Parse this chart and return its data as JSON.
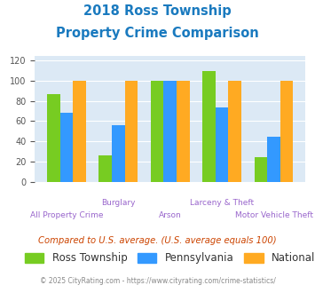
{
  "title_line1": "2018 Ross Township",
  "title_line2": "Property Crime Comparison",
  "categories": [
    "All Property Crime",
    "Burglary",
    "Arson",
    "Larceny & Theft",
    "Motor Vehicle Theft"
  ],
  "ross": [
    87,
    26,
    100,
    110,
    24
  ],
  "pennsylvania": [
    68,
    56,
    100,
    74,
    45
  ],
  "national": [
    100,
    100,
    100,
    100,
    100
  ],
  "ross_color": "#77cc22",
  "penn_color": "#3399ff",
  "national_color": "#ffaa22",
  "title_color": "#1a7abf",
  "xlabel_color": "#9966cc",
  "bar_width": 0.25,
  "ylim": [
    0,
    125
  ],
  "yticks": [
    0,
    20,
    40,
    60,
    80,
    100,
    120
  ],
  "background_color": "#dce9f5",
  "footer_text": "Compared to U.S. average. (U.S. average equals 100)",
  "copyright_text": "© 2025 CityRating.com - https://www.cityrating.com/crime-statistics/",
  "footer_color": "#cc4400",
  "copyright_color": "#888888",
  "row1_labels": [
    "",
    "Burglary",
    "",
    "Larceny & Theft",
    ""
  ],
  "row2_labels": [
    "All Property Crime",
    "",
    "Arson",
    "",
    "Motor Vehicle Theft"
  ]
}
